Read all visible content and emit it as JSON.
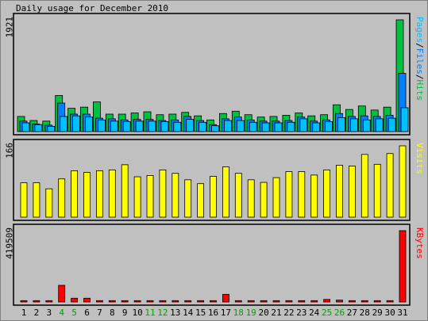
{
  "title": "Daily usage for December 2010",
  "colors": {
    "background": "#c0c0c0",
    "panel_border": "#000000",
    "hits": "#00c040",
    "files": "#0080ff",
    "pages": "#00c0ff",
    "visits": "#ffff00",
    "kbytes": "#ff0000",
    "weekend_day_label": "#00a000"
  },
  "chart_data": [
    {
      "type": "bar",
      "title": "Daily usage for December 2010",
      "panel": "hits-files-pages",
      "ymax_label": "1921",
      "ylim": [
        0,
        1921
      ],
      "legend": [
        {
          "text": "Pages",
          "color": "#00c0ff"
        },
        {
          "text": "/",
          "color": "#000000"
        },
        {
          "text": "Files",
          "color": "#0080ff"
        },
        {
          "text": "/",
          "color": "#000000"
        },
        {
          "text": "Hits",
          "color": "#00c040"
        }
      ],
      "categories": [
        "1",
        "2",
        "3",
        "4",
        "5",
        "6",
        "7",
        "8",
        "9",
        "10",
        "11",
        "12",
        "13",
        "14",
        "15",
        "16",
        "17",
        "18",
        "19",
        "20",
        "21",
        "22",
        "23",
        "24",
        "25",
        "26",
        "27",
        "28",
        "29",
        "30",
        "31"
      ],
      "series": [
        {
          "name": "Hits",
          "values": [
            260,
            190,
            180,
            620,
            400,
            420,
            510,
            300,
            300,
            320,
            340,
            290,
            300,
            330,
            270,
            200,
            310,
            350,
            290,
            250,
            260,
            280,
            320,
            270,
            290,
            460,
            380,
            440,
            370,
            420,
            1921
          ]
        },
        {
          "name": "Files",
          "values": [
            180,
            130,
            110,
            490,
            300,
            300,
            230,
            220,
            200,
            210,
            210,
            190,
            200,
            260,
            190,
            120,
            220,
            250,
            200,
            180,
            180,
            190,
            250,
            180,
            200,
            310,
            260,
            270,
            260,
            280,
            1000
          ]
        },
        {
          "name": "Pages",
          "values": [
            150,
            120,
            90,
            260,
            270,
            250,
            200,
            180,
            170,
            180,
            180,
            170,
            160,
            210,
            160,
            100,
            190,
            190,
            160,
            150,
            150,
            160,
            220,
            150,
            170,
            240,
            220,
            200,
            220,
            230,
            410
          ]
        }
      ]
    },
    {
      "type": "bar",
      "panel": "visits",
      "ymax_label": "166",
      "ylim": [
        0,
        166
      ],
      "legend": [
        {
          "text": "Visits",
          "color": "#ffff00"
        }
      ],
      "categories": [
        "1",
        "2",
        "3",
        "4",
        "5",
        "6",
        "7",
        "8",
        "9",
        "10",
        "11",
        "12",
        "13",
        "14",
        "15",
        "16",
        "17",
        "18",
        "19",
        "20",
        "21",
        "22",
        "23",
        "24",
        "25",
        "26",
        "27",
        "28",
        "29",
        "30",
        "31"
      ],
      "series": [
        {
          "name": "Visits",
          "values": [
            80,
            80,
            66,
            89,
            108,
            104,
            108,
            110,
            122,
            94,
            97,
            110,
            102,
            87,
            78,
            95,
            117,
            102,
            87,
            81,
            92,
            106,
            106,
            98,
            110,
            121,
            119,
            146,
            123,
            148,
            166
          ]
        }
      ]
    },
    {
      "type": "bar",
      "panel": "kbytes",
      "ymax_label": "419509",
      "ylim": [
        0,
        419509
      ],
      "legend": [
        {
          "text": "KBytes",
          "color": "#ff0000"
        }
      ],
      "categories": [
        "1",
        "2",
        "3",
        "4",
        "5",
        "6",
        "7",
        "8",
        "9",
        "10",
        "11",
        "12",
        "13",
        "14",
        "15",
        "16",
        "17",
        "18",
        "19",
        "20",
        "21",
        "22",
        "23",
        "24",
        "25",
        "26",
        "27",
        "28",
        "29",
        "30",
        "31"
      ],
      "series": [
        {
          "name": "KBytes",
          "values": [
            8000,
            8000,
            8000,
            98000,
            22000,
            22000,
            8000,
            8000,
            8000,
            8000,
            8000,
            8000,
            8000,
            8000,
            8000,
            8000,
            45000,
            8000,
            8000,
            8000,
            8000,
            8000,
            8000,
            8000,
            15000,
            11000,
            8000,
            8000,
            8000,
            8000,
            419509
          ]
        }
      ]
    }
  ],
  "x_axis": {
    "labels": [
      "1",
      "2",
      "3",
      "4",
      "5",
      "6",
      "7",
      "8",
      "9",
      "10",
      "11",
      "12",
      "13",
      "14",
      "15",
      "16",
      "17",
      "18",
      "19",
      "20",
      "21",
      "22",
      "23",
      "24",
      "25",
      "26",
      "27",
      "28",
      "29",
      "30",
      "31"
    ],
    "weekend_days": [
      "4",
      "5",
      "11",
      "12",
      "18",
      "19",
      "25",
      "26"
    ]
  }
}
